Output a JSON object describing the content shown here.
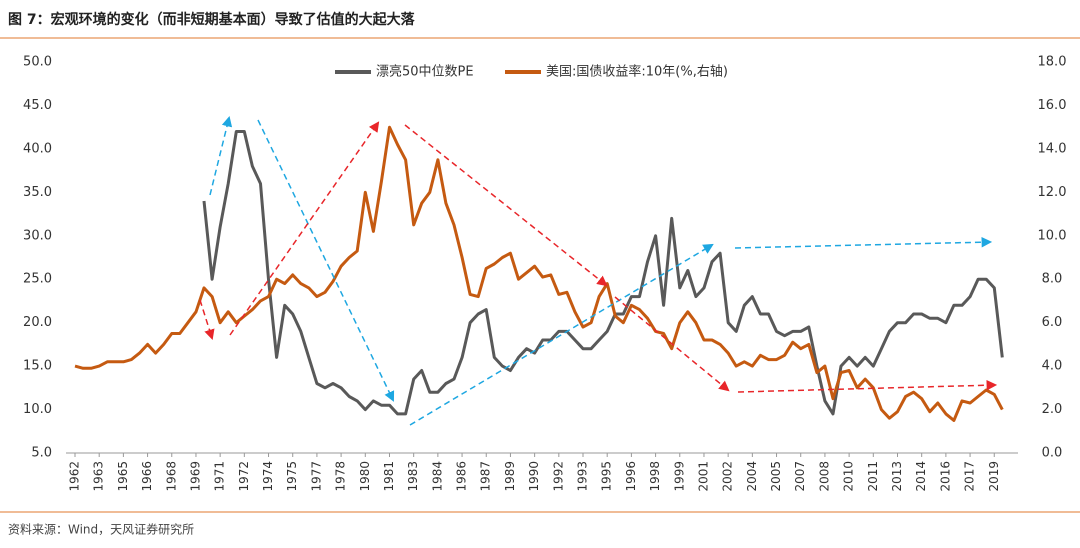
{
  "chart_data": {
    "type": "line",
    "title": "图 7：宏观环境的变化（而非短期基本面）导致了估值的大起大落",
    "source": "资料来源：Wind，天风证券研究所",
    "x": [
      1962,
      1962.5,
      1963,
      1963.5,
      1964,
      1964.5,
      1965,
      1965.5,
      1966,
      1966.5,
      1967,
      1967.5,
      1968,
      1968.5,
      1969,
      1969.5,
      1970,
      1970.5,
      1971,
      1971.5,
      1972,
      1972.5,
      1973,
      1973.5,
      1974,
      1974.5,
      1975,
      1975.5,
      1976,
      1976.5,
      1977,
      1977.5,
      1978,
      1978.5,
      1979,
      1979.5,
      1980,
      1980.5,
      1981,
      1981.5,
      1982,
      1982.5,
      1983,
      1983.5,
      1984,
      1984.5,
      1985,
      1985.5,
      1986,
      1986.5,
      1987,
      1987.5,
      1988,
      1988.5,
      1989,
      1989.5,
      1990,
      1990.5,
      1991,
      1991.5,
      1992,
      1992.5,
      1993,
      1993.5,
      1994,
      1994.5,
      1995,
      1995.5,
      1996,
      1996.5,
      1997,
      1997.5,
      1998,
      1998.5,
      1999,
      1999.5,
      2000,
      2000.5,
      2001,
      2001.5,
      2002,
      2002.5,
      2003,
      2003.5,
      2004,
      2004.5,
      2005,
      2005.5,
      2006,
      2006.5,
      2007,
      2007.5,
      2008,
      2008.5,
      2009,
      2009.5,
      2010,
      2010.5,
      2011,
      2011.5,
      2012,
      2012.5,
      2013,
      2013.5,
      2014,
      2014.5,
      2015,
      2015.5,
      2016,
      2016.5,
      2017,
      2017.5,
      2018,
      2018.5,
      2019,
      2019.5
    ],
    "series": [
      {
        "name": "漂亮50中位数PE",
        "color": "#595959",
        "axis": "y",
        "values": [
          null,
          null,
          null,
          null,
          null,
          null,
          null,
          null,
          null,
          null,
          null,
          null,
          null,
          null,
          null,
          null,
          34,
          25,
          31,
          36,
          42,
          42,
          38,
          36,
          25,
          16,
          22,
          21,
          19,
          16,
          13,
          12.5,
          13,
          12.5,
          11.5,
          11,
          10,
          11,
          10.5,
          10.5,
          9.5,
          9.5,
          13.5,
          14.5,
          12,
          12,
          13,
          13.5,
          16,
          20,
          21,
          21.5,
          16,
          15,
          14.5,
          16,
          17,
          16.5,
          18,
          18,
          19,
          19,
          18,
          17,
          17,
          18,
          19,
          21,
          21,
          23,
          23,
          27,
          30,
          22,
          32,
          24,
          26,
          23,
          24,
          27,
          28,
          20,
          19,
          22,
          23,
          21,
          21,
          19,
          18.5,
          19,
          19,
          19.5,
          15,
          11,
          9.5,
          15,
          16,
          15,
          16,
          15,
          17,
          19,
          20,
          20,
          21,
          21,
          20.5,
          20.5,
          20,
          22,
          22,
          23,
          25,
          25,
          24,
          16
        ]
      },
      {
        "name": "美国:国债收益率:10年(%,右轴)",
        "color": "#c55a11",
        "axis": "y2",
        "values": [
          4.0,
          3.9,
          3.9,
          4.0,
          4.2,
          4.2,
          4.2,
          4.3,
          4.6,
          5.0,
          4.6,
          5.0,
          5.5,
          5.5,
          6.0,
          6.5,
          7.6,
          7.2,
          6.0,
          6.5,
          6.0,
          6.3,
          6.6,
          7.0,
          7.2,
          8.0,
          7.8,
          8.2,
          7.8,
          7.6,
          7.2,
          7.4,
          7.9,
          8.6,
          9.0,
          9.3,
          12.0,
          10.2,
          12.5,
          15.0,
          14.2,
          13.5,
          10.5,
          11.5,
          12.0,
          13.5,
          11.5,
          10.5,
          9.0,
          7.3,
          7.2,
          8.5,
          8.7,
          9.0,
          9.2,
          8.0,
          8.3,
          8.6,
          8.1,
          8.2,
          7.3,
          7.4,
          6.5,
          5.8,
          6.0,
          7.2,
          7.8,
          6.3,
          6.0,
          6.8,
          6.6,
          6.2,
          5.6,
          5.5,
          4.8,
          6.0,
          6.5,
          6.0,
          5.2,
          5.2,
          5.0,
          4.6,
          4.0,
          4.2,
          4.0,
          4.5,
          4.3,
          4.3,
          4.5,
          5.1,
          4.8,
          5.0,
          3.7,
          4.0,
          2.5,
          3.7,
          3.8,
          3.0,
          3.4,
          3.0,
          2.0,
          1.6,
          1.9,
          2.6,
          2.8,
          2.5,
          1.9,
          2.3,
          1.8,
          1.5,
          2.4,
          2.3,
          2.6,
          2.9,
          2.7,
          2.0
        ]
      }
    ],
    "xlim": [
      1962,
      2020.1
    ],
    "xticks": [
      {
        "value": 1962,
        "label": "1962"
      },
      {
        "value": 1963.5,
        "label": "1963"
      },
      {
        "value": 1965,
        "label": "1965"
      },
      {
        "value": 1966.5,
        "label": "1966"
      },
      {
        "value": 1968,
        "label": "1968"
      },
      {
        "value": 1969.5,
        "label": "1969"
      },
      {
        "value": 1971,
        "label": "1971"
      },
      {
        "value": 1972.5,
        "label": "1972"
      },
      {
        "value": 1974,
        "label": "1974"
      },
      {
        "value": 1975.5,
        "label": "1975"
      },
      {
        "value": 1977,
        "label": "1977"
      },
      {
        "value": 1978.5,
        "label": "1978"
      },
      {
        "value": 1980,
        "label": "1980"
      },
      {
        "value": 1981.5,
        "label": "1981"
      },
      {
        "value": 1983,
        "label": "1983"
      },
      {
        "value": 1984.5,
        "label": "1984"
      },
      {
        "value": 1986,
        "label": "1986"
      },
      {
        "value": 1987.5,
        "label": "1987"
      },
      {
        "value": 1989,
        "label": "1989"
      },
      {
        "value": 1990.5,
        "label": "1990"
      },
      {
        "value": 1992,
        "label": "1992"
      },
      {
        "value": 1993.5,
        "label": "1993"
      },
      {
        "value": 1995,
        "label": "1995"
      },
      {
        "value": 1996.5,
        "label": "1996"
      },
      {
        "value": 1998,
        "label": "1998"
      },
      {
        "value": 1999.5,
        "label": "1999"
      },
      {
        "value": 2001,
        "label": "2001"
      },
      {
        "value": 2002.5,
        "label": "2002"
      },
      {
        "value": 2004,
        "label": "2004"
      },
      {
        "value": 2005.5,
        "label": "2005"
      },
      {
        "value": 2007,
        "label": "2007"
      },
      {
        "value": 2008.5,
        "label": "2008"
      },
      {
        "value": 2010,
        "label": "2010"
      },
      {
        "value": 2011.5,
        "label": "2011"
      },
      {
        "value": 2013,
        "label": "2013"
      },
      {
        "value": 2014.5,
        "label": "2014"
      },
      {
        "value": 2016,
        "label": "2016"
      },
      {
        "value": 2017.5,
        "label": "2017"
      },
      {
        "value": 2019,
        "label": "2019"
      }
    ],
    "ylim": [
      5,
      50
    ],
    "yticks": [
      {
        "value": 5,
        "label": "5.0"
      },
      {
        "value": 10,
        "label": "10.0"
      },
      {
        "value": 15,
        "label": "15.0"
      },
      {
        "value": 20,
        "label": "20.0"
      },
      {
        "value": 25,
        "label": "25.0"
      },
      {
        "value": 30,
        "label": "30.0"
      },
      {
        "value": 35,
        "label": "35.0"
      },
      {
        "value": 40,
        "label": "40.0"
      },
      {
        "value": 45,
        "label": "45.0"
      },
      {
        "value": 50,
        "label": "50.0"
      }
    ],
    "y2lim": [
      0,
      18
    ],
    "y2ticks": [
      {
        "value": 0,
        "label": "0.0"
      },
      {
        "value": 2,
        "label": "2.0"
      },
      {
        "value": 4,
        "label": "4.0"
      },
      {
        "value": 6,
        "label": "6.0"
      },
      {
        "value": 8,
        "label": "8.0"
      },
      {
        "value": 10,
        "label": "10.0"
      },
      {
        "value": 12,
        "label": "12.0"
      },
      {
        "value": 14,
        "label": "14.0"
      },
      {
        "value": 16,
        "label": "16.0"
      },
      {
        "value": 18,
        "label": "18.0"
      }
    ],
    "grid": false,
    "legend": "top"
  }
}
